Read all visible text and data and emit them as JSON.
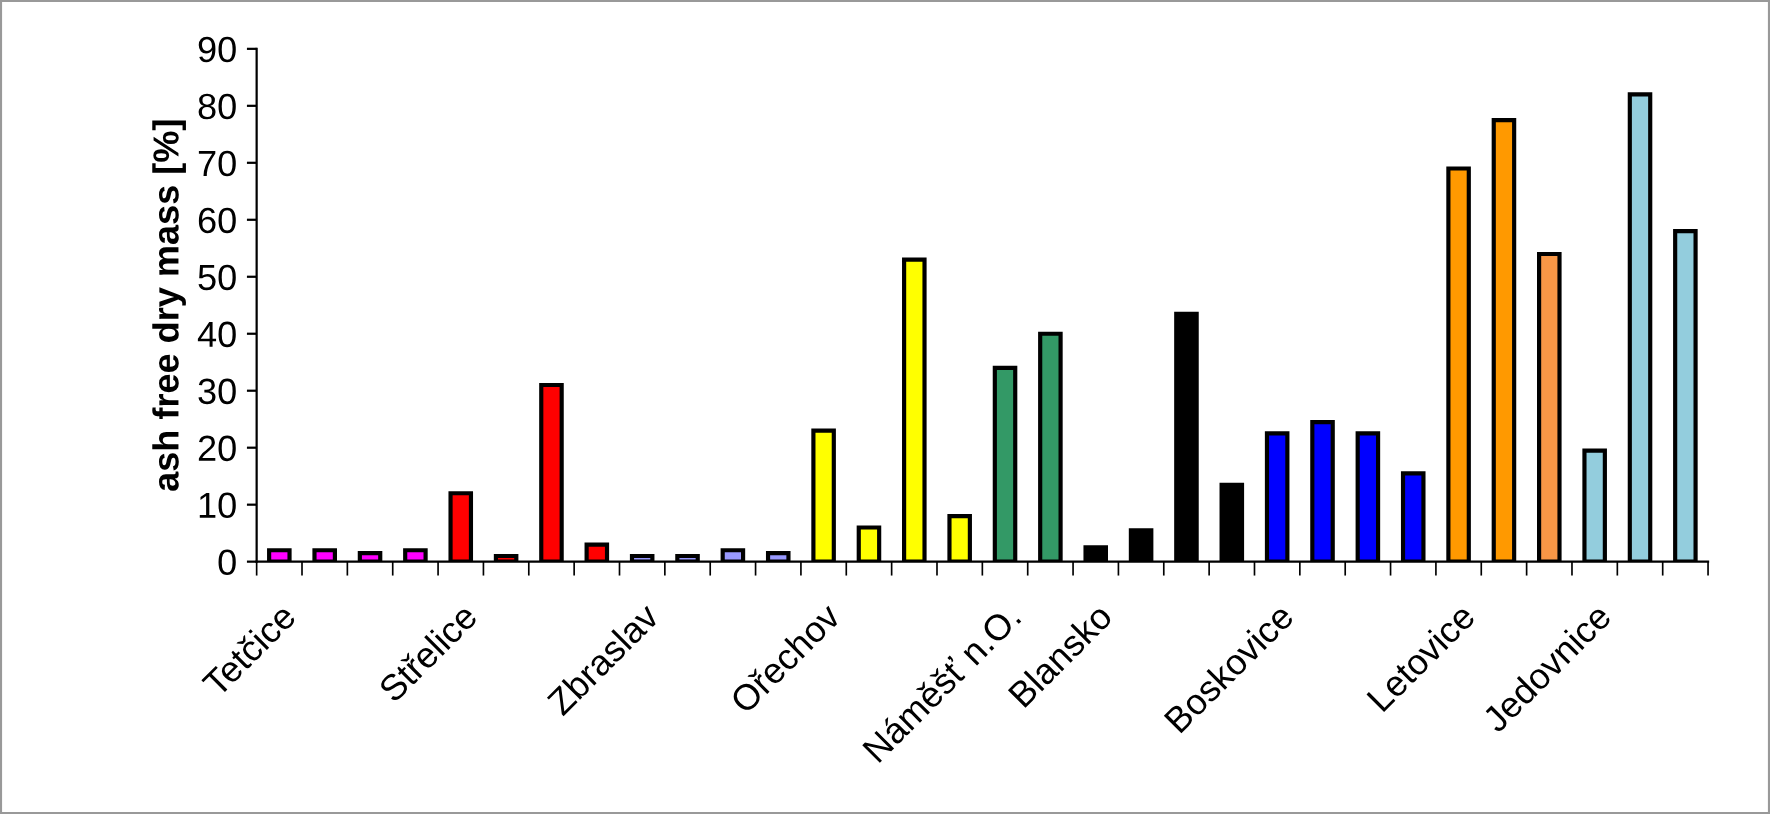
{
  "chart_data": {
    "type": "bar",
    "ylabel": "ash free dry mass [%]",
    "categories": [
      "Tetčice",
      null,
      null,
      null,
      "Střelice",
      null,
      null,
      null,
      "Zbraslav",
      null,
      null,
      null,
      "Ořechov",
      null,
      null,
      null,
      "Náměšť n.O.",
      null,
      "Blansko",
      null,
      null,
      null,
      "Boskovice",
      null,
      null,
      null,
      "Letovice",
      null,
      null,
      "Jedovnice",
      null,
      null
    ],
    "values": [
      2,
      2,
      1.5,
      2,
      12,
      1,
      31,
      3,
      1,
      1,
      2,
      1.5,
      23,
      6,
      53,
      8,
      34,
      40,
      2.5,
      5.5,
      43.5,
      13.5,
      22.5,
      24.5,
      22.5,
      15.5,
      69,
      77.5,
      54,
      19.5,
      82,
      58
    ],
    "colors": [
      "#ff00ff",
      "#ff00ff",
      "#ff00ff",
      "#ff00ff",
      "#ff0000",
      "#ff0000",
      "#ff0000",
      "#ff0000",
      "#9999ff",
      "#9999ff",
      "#9999ff",
      "#9999ff",
      "#ffff00",
      "#ffff00",
      "#ffff00",
      "#ffff00",
      "#339966",
      "#339966",
      "#000000",
      "#000000",
      "#000000",
      "#000000",
      "#0000ff",
      "#0000ff",
      "#0000ff",
      "#0000ff",
      "#ff9900",
      "#ff9900",
      "#f79646",
      "#93cddd",
      "#93cddd",
      "#93cddd"
    ],
    "ylim": [
      0,
      90
    ],
    "yticks": [
      0,
      10,
      20,
      30,
      40,
      50,
      60,
      70,
      80,
      90
    ],
    "grid": false,
    "legend": false
  }
}
